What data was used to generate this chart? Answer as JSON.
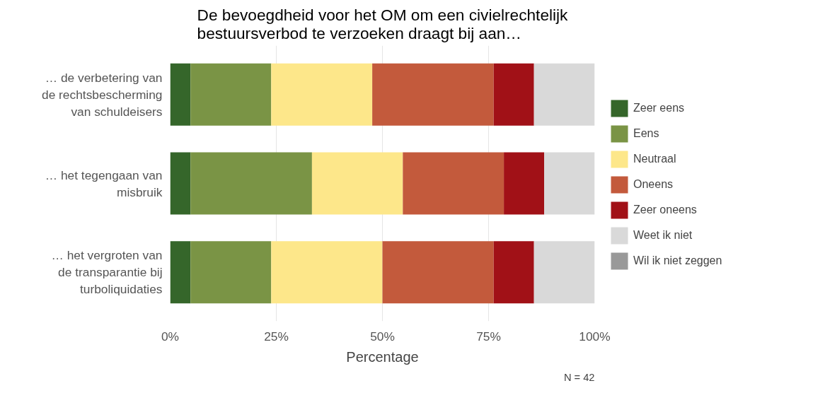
{
  "chart_data": {
    "type": "bar",
    "orientation": "horizontal",
    "stacked": true,
    "title": "De bevoegdheid voor het OM om een civielrechtelijk\nbestuursverbod te verzoeken draagt bij aan…",
    "xlabel": "Percentage",
    "categories": [
      "… de verbetering van\nde rechtsbescherming\nvan schuldeisers",
      "… het tegengaan van\nmisbruik",
      "… het vergroten van\nde transparantie bij\nturboliquidaties"
    ],
    "series": [
      {
        "name": "Zeer eens",
        "color": "#35662a",
        "values": [
          4.8,
          4.8,
          4.8
        ]
      },
      {
        "name": "Eens",
        "color": "#7a9445",
        "values": [
          19.0,
          28.6,
          19.0
        ]
      },
      {
        "name": "Neutraal",
        "color": "#fde78a",
        "values": [
          23.8,
          21.4,
          26.2
        ]
      },
      {
        "name": "Oneens",
        "color": "#c35a3c",
        "values": [
          28.6,
          23.8,
          26.2
        ]
      },
      {
        "name": "Zeer oneens",
        "color": "#a11117",
        "values": [
          9.5,
          9.5,
          9.5
        ]
      },
      {
        "name": "Weet ik niet",
        "color": "#d9d9d9",
        "values": [
          14.3,
          11.9,
          14.3
        ]
      },
      {
        "name": "Wil ik niet zeggen",
        "color": "#999999",
        "values": [
          0,
          0,
          0
        ]
      }
    ],
    "xlim": [
      0,
      100
    ],
    "xticks": [
      {
        "value": 0,
        "label": "0%"
      },
      {
        "value": 25,
        "label": "25%"
      },
      {
        "value": 50,
        "label": "50%"
      },
      {
        "value": 75,
        "label": "75%"
      },
      {
        "value": 100,
        "label": "100%"
      }
    ],
    "grid": "x",
    "legend": "right",
    "annotations": [
      "N = 42"
    ]
  }
}
